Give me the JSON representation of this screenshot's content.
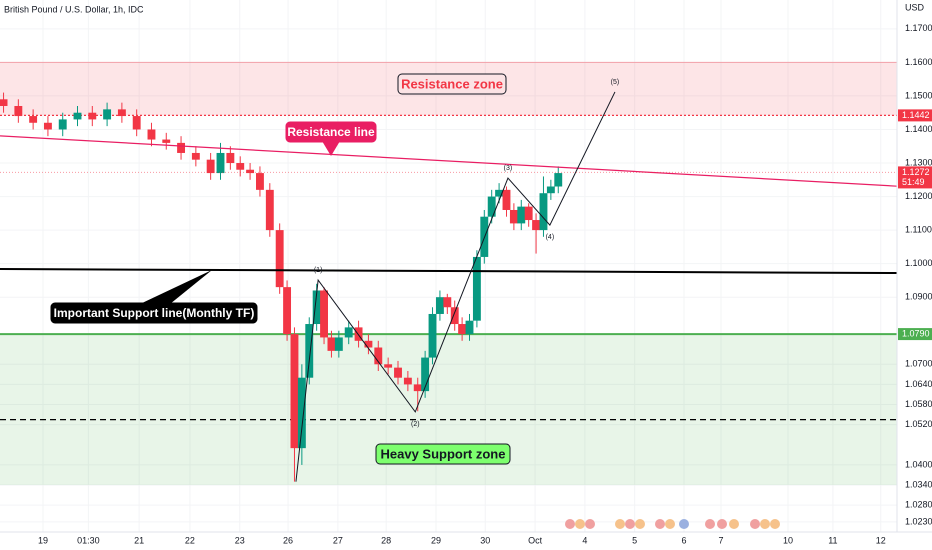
{
  "chart_data": {
    "type": "candlestick",
    "title": "British Pound / U.S. Dollar, 1h, IDC",
    "currency": "USD",
    "xlim": [
      -0.872,
      17.32
    ],
    "ylim": [
      1.02,
      1.1786
    ],
    "xticks": [
      {
        "value": 0,
        "label": "19"
      },
      {
        "value": 0.92,
        "label": "01:30"
      },
      {
        "value": 1.95,
        "label": "21"
      },
      {
        "value": 2.98,
        "label": "22"
      },
      {
        "value": 3.99,
        "label": "23"
      },
      {
        "value": 4.97,
        "label": "26"
      },
      {
        "value": 5.98,
        "label": "27"
      },
      {
        "value": 6.96,
        "label": "28"
      },
      {
        "value": 7.97,
        "label": "29"
      },
      {
        "value": 8.97,
        "label": "30"
      },
      {
        "value": 9.98,
        "label": "Oct"
      },
      {
        "value": 10.99,
        "label": "4"
      },
      {
        "value": 12.0,
        "label": "5"
      },
      {
        "value": 13.0,
        "label": "6"
      },
      {
        "value": 13.75,
        "label": "7"
      },
      {
        "value": 15.11,
        "label": "10"
      },
      {
        "value": 16.02,
        "label": "11"
      },
      {
        "value": 16.99,
        "label": "12"
      }
    ],
    "yticks": [
      {
        "value": 1.17,
        "label": "1.1700"
      },
      {
        "value": 1.16,
        "label": "1.1600"
      },
      {
        "value": 1.15,
        "label": "1.1500"
      },
      {
        "value": 1.14,
        "label": "1.1400"
      },
      {
        "value": 1.13,
        "label": "1.1300"
      },
      {
        "value": 1.12,
        "label": "1.1200"
      },
      {
        "value": 1.11,
        "label": "1.1100"
      },
      {
        "value": 1.1,
        "label": "1.1000"
      },
      {
        "value": 1.09,
        "label": "1.0900"
      },
      {
        "value": 1.07,
        "label": "1.0700"
      },
      {
        "value": 1.064,
        "label": "1.0640"
      },
      {
        "value": 1.058,
        "label": "1.0580"
      },
      {
        "value": 1.052,
        "label": "1.0520"
      },
      {
        "value": 1.04,
        "label": "1.0400"
      },
      {
        "value": 1.034,
        "label": "1.0340"
      },
      {
        "value": 1.028,
        "label": "1.0280"
      },
      {
        "value": 1.023,
        "label": "1.0230"
      }
    ],
    "up_color": "#089981",
    "down_color": "#f23645",
    "x": [
      -0.8,
      -0.5,
      -0.2,
      0.1,
      0.4,
      0.7,
      1.0,
      1.3,
      1.6,
      1.9,
      2.2,
      2.5,
      2.8,
      3.1,
      3.4,
      3.6,
      3.8,
      4.0,
      4.2,
      4.4,
      4.6,
      4.8,
      4.95,
      5.1,
      5.25,
      5.4,
      5.55,
      5.7,
      5.85,
      6.0,
      6.2,
      6.4,
      6.6,
      6.8,
      7.0,
      7.2,
      7.4,
      7.6,
      7.75,
      7.9,
      8.05,
      8.2,
      8.35,
      8.5,
      8.65,
      8.8,
      8.95,
      9.1,
      9.25,
      9.4,
      9.55,
      9.7,
      9.85,
      10.0,
      10.15,
      10.3,
      10.45
    ],
    "open": [
      1.149,
      1.147,
      1.144,
      1.142,
      1.14,
      1.143,
      1.145,
      1.143,
      1.146,
      1.144,
      1.14,
      1.137,
      1.136,
      1.133,
      1.131,
      1.127,
      1.133,
      1.13,
      1.128,
      1.127,
      1.122,
      1.11,
      1.093,
      1.079,
      1.045,
      1.066,
      1.082,
      1.092,
      1.078,
      1.074,
      1.078,
      1.081,
      1.077,
      1.075,
      1.07,
      1.069,
      1.066,
      1.064,
      1.062,
      1.072,
      1.085,
      1.09,
      1.087,
      1.082,
      1.079,
      1.083,
      1.102,
      1.114,
      1.12,
      1.122,
      1.116,
      1.112,
      1.117,
      1.113,
      1.11,
      1.121,
      1.123
    ],
    "high": [
      1.151,
      1.149,
      1.146,
      1.144,
      1.145,
      1.147,
      1.147,
      1.148,
      1.148,
      1.146,
      1.142,
      1.139,
      1.138,
      1.135,
      1.133,
      1.136,
      1.135,
      1.132,
      1.13,
      1.129,
      1.124,
      1.112,
      1.095,
      1.081,
      1.07,
      1.084,
      1.094,
      1.093,
      1.08,
      1.08,
      1.083,
      1.083,
      1.079,
      1.077,
      1.072,
      1.071,
      1.068,
      1.066,
      1.074,
      1.087,
      1.092,
      1.091,
      1.089,
      1.084,
      1.085,
      1.104,
      1.116,
      1.122,
      1.124,
      1.123,
      1.118,
      1.119,
      1.118,
      1.115,
      1.126,
      1.125,
      1.129
    ],
    "low": [
      1.145,
      1.142,
      1.14,
      1.138,
      1.138,
      1.141,
      1.141,
      1.141,
      1.142,
      1.138,
      1.135,
      1.134,
      1.131,
      1.129,
      1.125,
      1.125,
      1.128,
      1.126,
      1.125,
      1.12,
      1.108,
      1.091,
      1.077,
      1.035,
      1.04,
      1.064,
      1.08,
      1.076,
      1.072,
      1.072,
      1.076,
      1.075,
      1.073,
      1.068,
      1.067,
      1.064,
      1.062,
      1.056,
      1.06,
      1.07,
      1.083,
      1.085,
      1.08,
      1.077,
      1.077,
      1.081,
      1.1,
      1.112,
      1.118,
      1.114,
      1.11,
      1.11,
      1.111,
      1.103,
      1.108,
      1.119,
      1.121
    ],
    "close": [
      1.147,
      1.144,
      1.142,
      1.14,
      1.143,
      1.145,
      1.143,
      1.146,
      1.144,
      1.14,
      1.137,
      1.136,
      1.133,
      1.131,
      1.127,
      1.133,
      1.13,
      1.128,
      1.127,
      1.122,
      1.11,
      1.093,
      1.079,
      1.045,
      1.066,
      1.082,
      1.092,
      1.078,
      1.074,
      1.078,
      1.081,
      1.077,
      1.075,
      1.07,
      1.069,
      1.066,
      1.064,
      1.062,
      1.072,
      1.085,
      1.09,
      1.087,
      1.082,
      1.079,
      1.083,
      1.102,
      1.114,
      1.12,
      1.122,
      1.116,
      1.112,
      1.117,
      1.113,
      1.11,
      1.121,
      1.123,
      1.127
    ],
    "zones": [
      {
        "label": "Resistance zone",
        "from": 1.1442,
        "to": 1.16,
        "color": "#f23645"
      },
      {
        "label": "Heavy Support zone",
        "from": 1.034,
        "to": 1.079,
        "color": "#4caf50"
      }
    ],
    "trend_lines": [
      {
        "label": "Resistance line",
        "x": [
          -0.872,
          17.32
        ],
        "y": [
          1.1381,
          1.1231
        ],
        "color": "#e91e63"
      },
      {
        "label": "Important Support line(Monthly TF)",
        "x": [
          -0.872,
          17.32
        ],
        "y": [
          1.0984,
          1.0972
        ],
        "color": "#000000"
      }
    ],
    "levels": [
      {
        "value": 1.1442,
        "label": "1.1442",
        "color": "#f23645",
        "style": "dotted"
      },
      {
        "value": 1.079,
        "label": "1.0790",
        "color": "#4caf50",
        "style": "solid"
      },
      {
        "value": 1.0535,
        "color": "#000000",
        "style": "dashed"
      }
    ],
    "last_price": {
      "value": 1.1272,
      "label": "1.1272",
      "countdown": "51:49",
      "color": "#f23645"
    },
    "waves": {
      "labels": [
        "(1)",
        "(2)",
        "(3)",
        "(4)",
        "(5)"
      ],
      "x": [
        5.13,
        5.58,
        7.55,
        9.43,
        10.28,
        11.6
      ],
      "y": [
        1.035,
        1.0951,
        1.0558,
        1.1255,
        1.1115,
        1.1512
      ]
    }
  }
}
